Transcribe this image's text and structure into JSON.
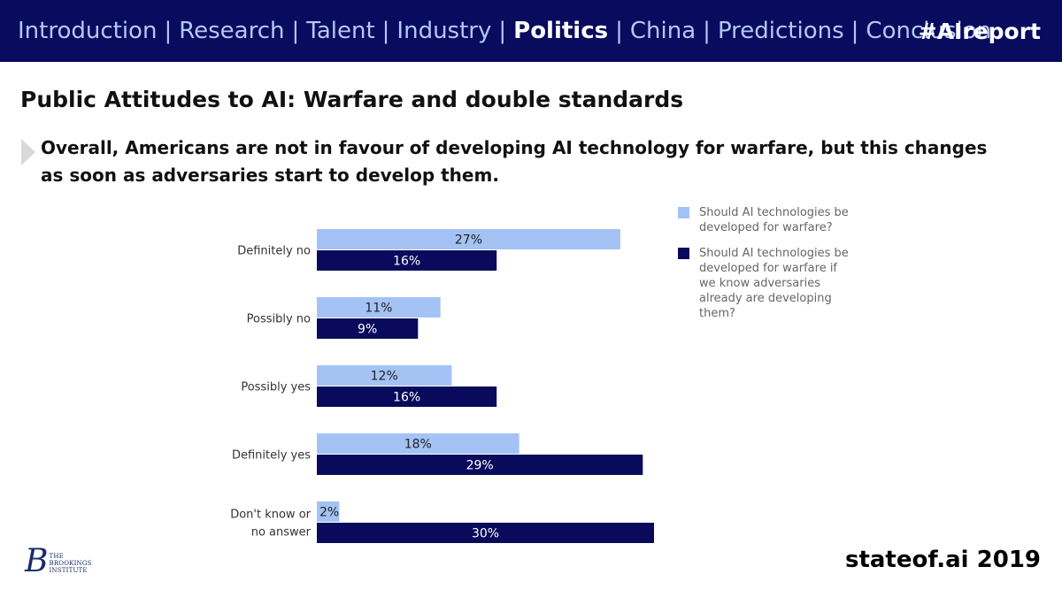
{
  "header": {
    "nav": [
      {
        "label": "Introduction",
        "active": false
      },
      {
        "label": "Research",
        "active": false
      },
      {
        "label": "Talent",
        "active": false
      },
      {
        "label": "Industry",
        "active": false
      },
      {
        "label": "Politics",
        "active": true
      },
      {
        "label": "China",
        "active": false
      },
      {
        "label": "Predictions",
        "active": false
      },
      {
        "label": "Conclusion",
        "active": false
      }
    ],
    "separator": "|",
    "hashtag": "#AIreport"
  },
  "slide": {
    "title": "Public Attitudes to AI: Warfare and double standards",
    "subtitle": "Overall, Americans are not in favour of developing AI technology for warfare, but this changes as soon as adversaries start to develop them."
  },
  "chart_data": {
    "type": "bar",
    "orientation": "horizontal",
    "categories": [
      "Definitely no",
      "Possibly no",
      "Possibly yes",
      "Definitely yes",
      "Don't know or no answer"
    ],
    "series": [
      {
        "name": "Should AI technologies be developed for warfare?",
        "values": [
          27,
          11,
          12,
          18,
          2
        ],
        "color": "#a4c2f4"
      },
      {
        "name": "Should AI technologies be developed for warfare if we know adversaries already are developing them?",
        "values": [
          16,
          9,
          16,
          29,
          30
        ],
        "color": "#0a0a5c"
      }
    ],
    "value_suffix": "%",
    "xlim": [
      0,
      30
    ],
    "title": "",
    "xlabel": "",
    "ylabel": "",
    "grid": false,
    "legend": "right"
  },
  "footer": {
    "brookings_lines": [
      "THE",
      "BROOKINGS",
      "INSTITUTE"
    ],
    "brookings_letter": "B",
    "stateof": "stateof.ai 2019"
  },
  "colors": {
    "header_bg": "#080b5e",
    "nav_text": "#b4c8f3",
    "series_light": "#a4c2f4",
    "series_dark": "#0a0a5c"
  }
}
